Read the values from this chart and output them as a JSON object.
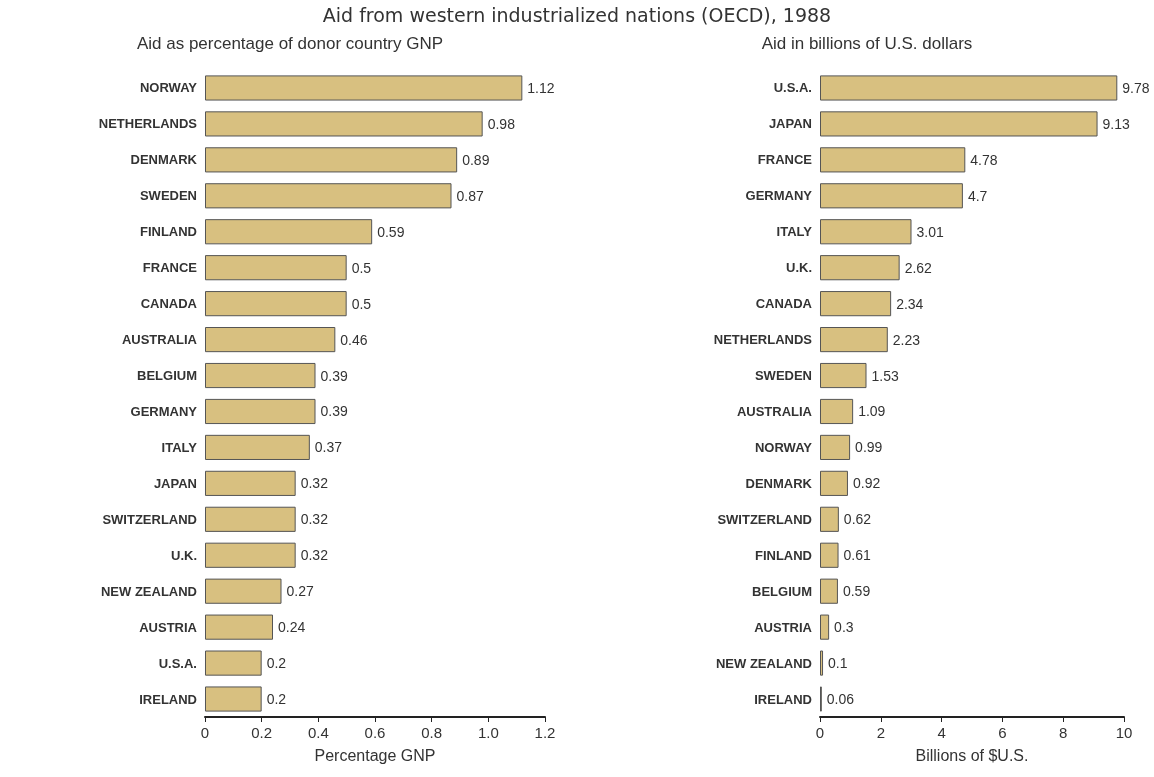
{
  "chart_data": [
    {
      "type": "bar",
      "orientation": "horizontal",
      "title": "Aid from western industrialized nations (OECD), 1988",
      "subtitle": "Aid as percentage of donor country GNP",
      "xlabel": "Percentage GNP",
      "categories": [
        "NORWAY",
        "NETHERLANDS",
        "DENMARK",
        "SWEDEN",
        "FINLAND",
        "FRANCE",
        "CANADA",
        "AUSTRALIA",
        "BELGIUM",
        "GERMANY",
        "ITALY",
        "JAPAN",
        "SWITZERLAND",
        "U.K.",
        "NEW ZEALAND",
        "AUSTRIA",
        "U.S.A.",
        "IRELAND"
      ],
      "values": [
        1.12,
        0.98,
        0.89,
        0.87,
        0.59,
        0.5,
        0.5,
        0.46,
        0.39,
        0.39,
        0.37,
        0.32,
        0.32,
        0.32,
        0.27,
        0.24,
        0.2,
        0.2
      ],
      "color": "#d8c080",
      "data_labels": true,
      "grid": false,
      "xlim": [
        0,
        1.2
      ],
      "xticks": [
        0,
        0.2,
        0.4,
        0.6,
        0.8,
        {
          "value": 1,
          "label": "1.0"
        },
        1.2
      ]
    },
    {
      "type": "bar",
      "orientation": "horizontal",
      "title": "Aid in billions of U.S. dollars",
      "xlabel": "Billions of $U.S.",
      "categories": [
        "U.S.A.",
        "JAPAN",
        "FRANCE",
        "GERMANY",
        "ITALY",
        "U.K.",
        "CANADA",
        "NETHERLANDS",
        "SWEDEN",
        "AUSTRALIA",
        "NORWAY",
        "DENMARK",
        "SWITZERLAND",
        "FINLAND",
        "BELGIUM",
        "AUSTRIA",
        "NEW ZEALAND",
        "IRELAND"
      ],
      "values": [
        9.78,
        9.13,
        4.78,
        4.7,
        3.01,
        2.62,
        2.34,
        2.23,
        1.53,
        1.09,
        0.99,
        0.92,
        0.62,
        0.61,
        0.59,
        0.3,
        0.1,
        0.06
      ],
      "color": "#d8c080",
      "data_labels": true,
      "grid": false,
      "xlim": [
        0,
        10
      ],
      "xticks": [
        0,
        2,
        4,
        6,
        8,
        10
      ]
    }
  ]
}
